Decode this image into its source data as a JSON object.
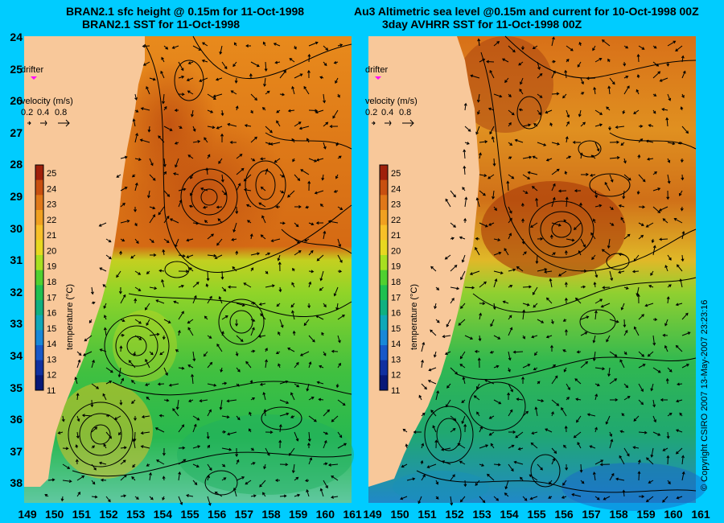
{
  "titles": {
    "left_line1": "BRAN2.1 sfc height @ 0.15m for 11-Oct-1998",
    "left_line2": "BRAN2.1 SST for 11-Oct-1998",
    "right_line1": "Au3 Altimetric sea level  @0.15m and current for 10-Oct-1998 00Z",
    "right_line2": "3day AVHRR SST for 11-Oct-1998 00Z"
  },
  "axes": {
    "lat_ticks": [
      "24",
      "25",
      "26",
      "27",
      "28",
      "29",
      "30",
      "31",
      "32",
      "33",
      "34",
      "35",
      "36",
      "37",
      "38"
    ],
    "lon_ticks": [
      "149",
      "150",
      "151",
      "152",
      "153",
      "154",
      "155",
      "156",
      "157",
      "158",
      "159",
      "160",
      "161"
    ]
  },
  "drifter": {
    "label": "drifter",
    "color": "#ff00ff"
  },
  "velocity_legend": {
    "label": "velocity (m/s)",
    "values": [
      "0.2",
      "0.4",
      "0.8"
    ]
  },
  "colorbar": {
    "label": "temperature (°C)",
    "ticks": [
      "25",
      "24",
      "23",
      "22",
      "21",
      "20",
      "19",
      "18",
      "17",
      "16",
      "15",
      "14",
      "13",
      "12",
      "11"
    ],
    "colors": [
      "#a0200a",
      "#c85010",
      "#e07818",
      "#f0a020",
      "#f8c028",
      "#e8d820",
      "#a8e020",
      "#50d030",
      "#20c050",
      "#10b080",
      "#10a8b8",
      "#1888d8",
      "#1858c8",
      "#1030a0",
      "#081878"
    ]
  },
  "copyright": "© Copyright CSIRO 2007   13-May-2007 23:23:16"
}
